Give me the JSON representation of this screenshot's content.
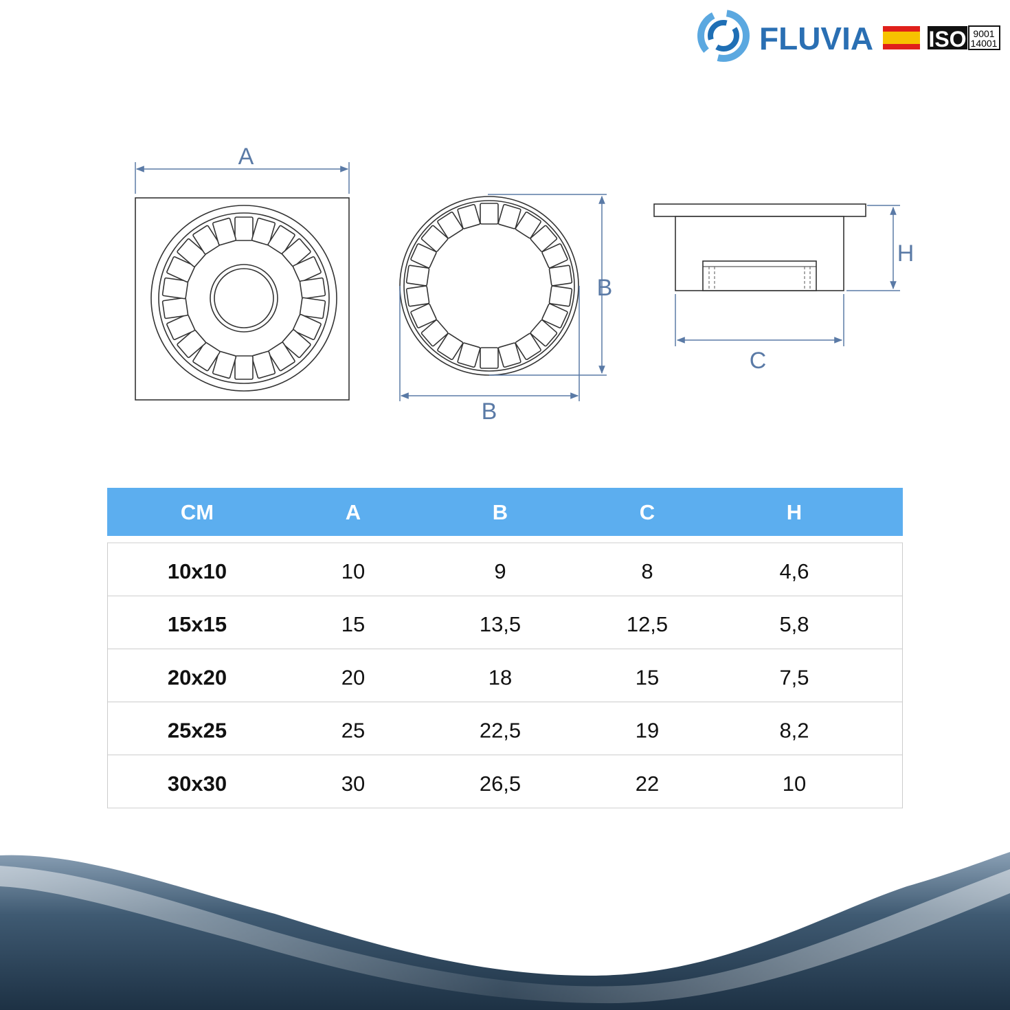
{
  "header": {
    "brand": "FLUVIA",
    "iso": {
      "label": "ISO",
      "standards": [
        "9001",
        "14001"
      ]
    }
  },
  "diagram": {
    "labels": {
      "top_a": "A",
      "side_b": "B",
      "bottom_b": "B",
      "h": "H",
      "c": "C"
    }
  },
  "table": {
    "columns": [
      "CM",
      "A",
      "B",
      "C",
      "H"
    ],
    "rows": [
      [
        "10x10",
        "10",
        "9",
        "8",
        "4,6"
      ],
      [
        "15x15",
        "15",
        "13,5",
        "12,5",
        "5,8"
      ],
      [
        "20x20",
        "20",
        "18",
        "15",
        "7,5"
      ],
      [
        "25x25",
        "25",
        "22,5",
        "19",
        "8,2"
      ],
      [
        "30x30",
        "30",
        "26,5",
        "22",
        "10"
      ]
    ]
  }
}
